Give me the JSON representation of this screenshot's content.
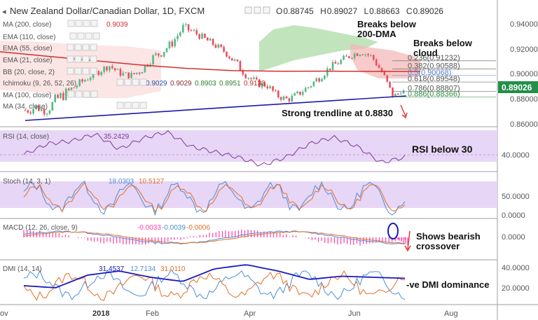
{
  "header": {
    "title": "New Zealand Dollar/Canadian Dollar, 1D, FXCM",
    "ohlc": [
      {
        "label": "O",
        "value": "0.88745"
      },
      {
        "label": "H",
        "value": "0.89027"
      },
      {
        "label": "L",
        "value": "0.88663"
      },
      {
        "label": "C",
        "value": "0.89026"
      }
    ]
  },
  "indicators": {
    "ma200": {
      "label": "MA (200, close)",
      "value": "0.9039"
    },
    "ema110": {
      "label": "EMA (110, close)"
    },
    "ema55": {
      "label": "EMA (55, close)"
    },
    "ema21": {
      "label": "EMA (21, close)"
    },
    "bb": {
      "label": "BB (20, close, 2)"
    },
    "ichimoku": {
      "label": "Ichimoku (9, 26, 52, 26)",
      "values": [
        "0.9029",
        "0.9029",
        "0.8903",
        "0.8951",
        "0.9133"
      ]
    },
    "ma100": {
      "label": "MA (100, close)"
    },
    "ma34": {
      "label": "MA (34, close)"
    },
    "rsi": {
      "label": "RSI (14, close)",
      "value": "35.2429"
    },
    "stoch": {
      "label": "Stoch (14, 3, 1)",
      "values": [
        "18.0303",
        "10.5127"
      ]
    },
    "macd": {
      "label": "MACD (12, 26, close, 9)",
      "values": [
        "-0.0033",
        "-0.0039",
        "-0.0006"
      ]
    },
    "dmi": {
      "label": "DMI (14, 14)",
      "values": [
        "31.4537",
        "12.7134",
        "31.0110"
      ]
    }
  },
  "price_axis": {
    "ticks": [
      "0.94000",
      "0.92000",
      "0.90000",
      "0.88000",
      "0.86000"
    ],
    "current": "0.89026"
  },
  "fib_levels": [
    {
      "label": "0.236(0.91232)",
      "color": "#555555"
    },
    {
      "label": "0.382(0.90588)",
      "color": "#555555"
    },
    {
      "label": "0.5(0.90068)",
      "color": "#5a7fc8"
    },
    {
      "label": "0.618(0.89548)",
      "color": "#555555"
    },
    {
      "label": "0.786(0.88807)",
      "color": "#555555"
    },
    {
      "label": "0.886(0.88366)",
      "color": "#2e8b3e"
    }
  ],
  "annotations": {
    "breaks_dma": [
      "Breaks below",
      "200-DMA"
    ],
    "breaks_cloud": [
      "Breaks below",
      "cloud"
    ],
    "trendline": "Strong trendline at 0.8830",
    "rsi": "RSI below 30",
    "macd": [
      "Shows bearish",
      "crossover"
    ],
    "dmi": "-ve DMI dominance"
  },
  "rsi_axis": [
    "40.0000"
  ],
  "stoch_axis": [
    "50.0000",
    "0.0000"
  ],
  "macd_axis": [
    "0.0000"
  ],
  "dmi_axis": [
    "40.0000",
    "20.0000"
  ],
  "time_axis": [
    "ov",
    "2018",
    "Feb",
    "Apr",
    "Jun",
    "Aug"
  ],
  "colors": {
    "up": "#53b987",
    "down": "#eb4d5c",
    "ma200": "#d32f2f",
    "trendline": "#1a1aa8",
    "cloud_green": "#a8d8a0",
    "cloud_red": "#f3b5b5",
    "rsi": "#7e3a9e",
    "rsi_band": "#e7d6f5",
    "stoch_k": "#4d8ed8",
    "stoch_d": "#e0702a",
    "macd": "#4d8ed8",
    "signal": "#e0702a",
    "histogram": "#ff3ca6",
    "dmi_plus": "#4d8ed8",
    "dmi_minus": "#e0702a",
    "adx": "#1a1ac0",
    "annotation_arrow": "#e53935",
    "last_price_bg": "#238f4a"
  },
  "chart_data": {
    "type": "candlestick",
    "title": "New Zealand Dollar/Canadian Dollar, 1D, FXCM",
    "anchors": [
      [
        0.878,
        0.868
      ],
      [
        0.88,
        0.871
      ],
      [
        0.876,
        0.869
      ],
      [
        0.888,
        0.875
      ],
      [
        0.892,
        0.883
      ],
      [
        0.897,
        0.89
      ],
      [
        0.902,
        0.896
      ],
      [
        0.907,
        0.901
      ],
      [
        0.911,
        0.906
      ],
      [
        0.905,
        0.9
      ],
      [
        0.903,
        0.898
      ],
      [
        0.908,
        0.901
      ],
      [
        0.918,
        0.91
      ],
      [
        0.924,
        0.915
      ],
      [
        0.93,
        0.923
      ],
      [
        0.943,
        0.934
      ],
      [
        0.938,
        0.933
      ],
      [
        0.933,
        0.927
      ],
      [
        0.928,
        0.922
      ],
      [
        0.922,
        0.917
      ],
      [
        0.915,
        0.907
      ],
      [
        0.905,
        0.898
      ],
      [
        0.898,
        0.891
      ],
      [
        0.896,
        0.89
      ],
      [
        0.887,
        0.882
      ],
      [
        0.884,
        0.879
      ],
      [
        0.889,
        0.883
      ],
      [
        0.895,
        0.889
      ],
      [
        0.903,
        0.896
      ],
      [
        0.91,
        0.904
      ],
      [
        0.915,
        0.909
      ],
      [
        0.92,
        0.914
      ],
      [
        0.922,
        0.917
      ],
      [
        0.918,
        0.913
      ],
      [
        0.906,
        0.899
      ],
      [
        0.887,
        0.8815
      ],
      [
        0.887,
        0.889
      ]
    ],
    "series": [
      {
        "name": "MA (200, close)",
        "values": [
          0.9195,
          0.916,
          0.9125,
          0.909,
          0.9063,
          0.9045,
          0.904,
          0.9041,
          0.9039,
          0.9039
        ]
      },
      {
        "name": "RSI (14, close)",
        "values": [
          40,
          60,
          65,
          78,
          50,
          70,
          82,
          55,
          45,
          35,
          20,
          35,
          60,
          72,
          55,
          25,
          35
        ]
      },
      {
        "name": "DMI (14, 14)",
        "values": [
          24,
          22,
          34,
          38,
          32,
          28,
          40,
          44,
          38,
          30,
          33,
          32,
          31
        ]
      }
    ]
  }
}
